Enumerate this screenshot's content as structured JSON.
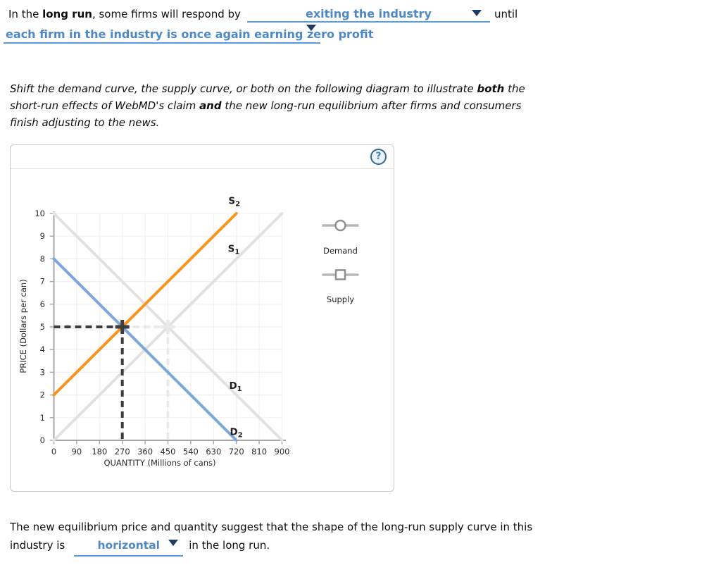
{
  "colors": {
    "link_blue": "#4f89c5",
    "underline_blue": "#5b9bd5",
    "arrow_navy": "#1c3c63",
    "axis_gray": "#a8a8a8",
    "grid_gray": "#f0f0f0",
    "tick_text": "#2b2b2b"
  },
  "question_top": {
    "part1_pre": "In the ",
    "part1_bold": "long run",
    "part1_post": ", some firms will respond by",
    "dropdown1_value": "exiting the industry",
    "part1_tail": "until",
    "dropdown2_value": "each firm in the industry is once again earning zero profit"
  },
  "instructions": {
    "l1a": "Shift the demand curve, the supply curve, or both on the following diagram to illustrate ",
    "l1b": "both",
    "l1c": " the",
    "l2a": "short-run effects of WebMD's claim ",
    "l2b": "and",
    "l2c": " the new long-run equilibrium after firms and consumers",
    "l3": "finish adjusting to the news."
  },
  "panel": {
    "help_label": "?"
  },
  "chart_data": {
    "type": "line",
    "title": "",
    "xlabel": "QUANTITY (Millions of cans)",
    "ylabel": "PRICE (Dollars per can)",
    "xlim": [
      0,
      900
    ],
    "ylim": [
      0,
      10
    ],
    "grid": true,
    "x_ticks": [
      0,
      90,
      180,
      270,
      360,
      450,
      540,
      630,
      720,
      810,
      900
    ],
    "y_ticks": [
      0,
      1,
      2,
      3,
      4,
      5,
      6,
      7,
      8,
      9,
      10
    ],
    "series": [
      {
        "id": "D1",
        "label_base": "D",
        "label_sub": "1",
        "color": "#e1e1e1",
        "points": [
          [
            0,
            10
          ],
          [
            900,
            0
          ]
        ],
        "label_pos": [
          711,
          2.45
        ],
        "interactable": false
      },
      {
        "id": "S1",
        "label_base": "S",
        "label_sub": "1",
        "color": "#e1e1e1",
        "points": [
          [
            0,
            0
          ],
          [
            900,
            10
          ]
        ],
        "label_pos": [
          706,
          8.5
        ],
        "interactable": false
      },
      {
        "id": "D2",
        "label_base": "D",
        "label_sub": "2",
        "color": "#7da7d9",
        "points": [
          [
            0,
            8
          ],
          [
            720,
            0
          ]
        ],
        "label_pos": [
          714,
          0.42
        ],
        "interactable": true
      },
      {
        "id": "S2",
        "label_base": "S",
        "label_sub": "2",
        "color": "#f7941e",
        "points": [
          [
            0,
            2
          ],
          [
            720,
            10
          ]
        ],
        "label_pos": [
          708,
          10.6
        ],
        "interactable": true
      }
    ],
    "equilibria": [
      {
        "id": "old",
        "x": 450,
        "y": 5,
        "h_from": 270,
        "color": "#e9e9e9"
      },
      {
        "id": "new",
        "x": 270,
        "y": 5,
        "h_from": 0,
        "color": "#3d3d3d"
      }
    ],
    "legend": [
      {
        "label": "Demand",
        "handle": "circle"
      },
      {
        "label": "Supply",
        "handle": "square"
      }
    ]
  },
  "question_bottom": {
    "line1": "The new equilibrium price and quantity suggest that the shape of the long-run supply curve in this",
    "pre": "industry is",
    "dropdown_value": "horizontal",
    "post": "in the long run."
  }
}
